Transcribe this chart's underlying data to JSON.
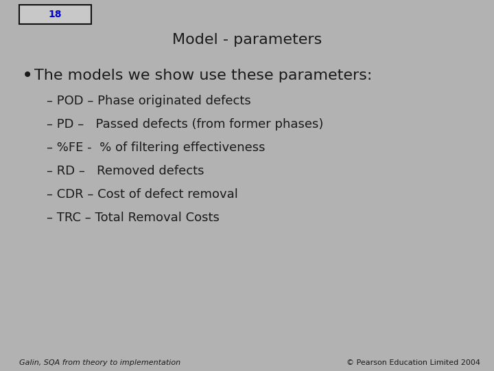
{
  "background_color": "#b2b2b2",
  "slide_number": "18",
  "title": "Model - parameters",
  "bullet_text": "The models we show use these parameters:",
  "sub_items": [
    "– POD – Phase originated defects",
    "– PD –   Passed defects (from former phases)",
    "– %FE -  % of filtering effectiveness",
    "– RD –   Removed defects",
    "– CDR – Cost of defect removal",
    "– TRC – Total Removal Costs"
  ],
  "footer_left": "Galin, SQA from theory to implementation",
  "footer_right": "© Pearson Education Limited 2004",
  "title_color": "#1a1a1a",
  "text_color": "#1a1a1a",
  "slide_num_color": "#0000cc",
  "box_facecolor": "#c8c8c8",
  "box_edgecolor": "#111111"
}
